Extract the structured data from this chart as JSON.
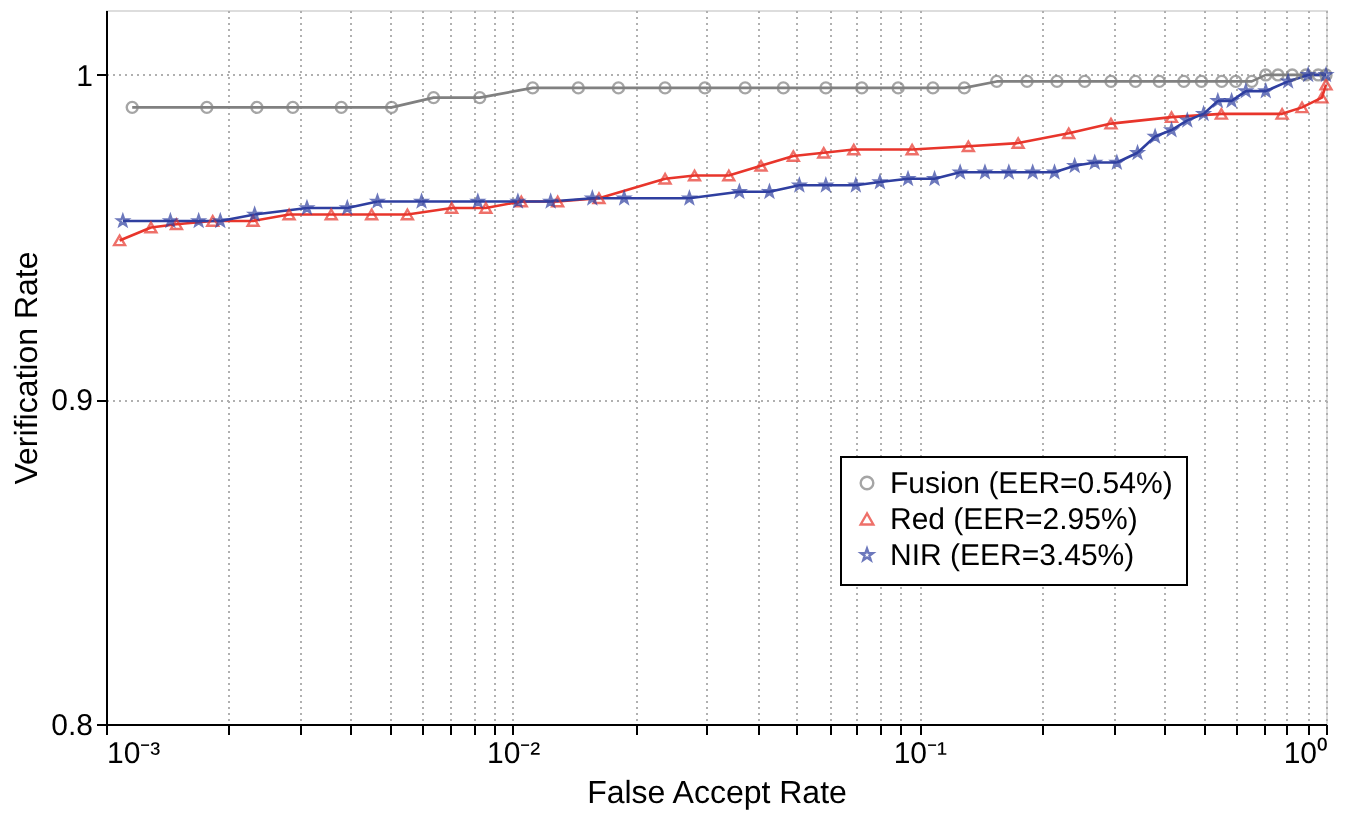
{
  "chart_data": {
    "type": "line",
    "xlabel": "False Accept Rate",
    "ylabel": "Verification Rate",
    "log": "x",
    "grid": true,
    "legend": "bottom right",
    "line_style": "solid",
    "xlim": [
      0.001,
      1
    ],
    "ylim": [
      0.8,
      1.02
    ],
    "xticks": [
      {
        "value": 0.001,
        "label": "10⁻³"
      },
      {
        "value": 0.002,
        "label": null
      },
      {
        "value": 0.003,
        "label": null
      },
      {
        "value": 0.004,
        "label": null
      },
      {
        "value": 0.005,
        "label": null
      },
      {
        "value": 0.006,
        "label": null
      },
      {
        "value": 0.007,
        "label": null
      },
      {
        "value": 0.008,
        "label": null
      },
      {
        "value": 0.009,
        "label": null
      },
      {
        "value": 0.01,
        "label": "10⁻²"
      },
      {
        "value": 0.02,
        "label": null
      },
      {
        "value": 0.03,
        "label": null
      },
      {
        "value": 0.04,
        "label": null
      },
      {
        "value": 0.05,
        "label": null
      },
      {
        "value": 0.06,
        "label": null
      },
      {
        "value": 0.07,
        "label": null
      },
      {
        "value": 0.08,
        "label": null
      },
      {
        "value": 0.09,
        "label": null
      },
      {
        "value": 0.1,
        "label": "10⁻¹"
      },
      {
        "value": 0.2,
        "label": null
      },
      {
        "value": 0.3,
        "label": null
      },
      {
        "value": 0.4,
        "label": null
      },
      {
        "value": 0.5,
        "label": null
      },
      {
        "value": 0.6,
        "label": null
      },
      {
        "value": 0.7,
        "label": null
      },
      {
        "value": 0.8,
        "label": null
      },
      {
        "value": 0.9,
        "label": null
      },
      {
        "value": 1,
        "label": "10⁰"
      }
    ],
    "yticks": [
      0.8,
      0.9,
      1
    ],
    "series": [
      {
        "name": "Fusion (EER=0.54%)",
        "color": "#808080",
        "marker": "circle",
        "x": [
          0.00116,
          0.00177,
          0.00235,
          0.00288,
          0.00379,
          0.00504,
          0.00639,
          0.0083,
          0.0112,
          0.0145,
          0.0182,
          0.0237,
          0.0297,
          0.0373,
          0.0463,
          0.0589,
          0.0722,
          0.0887,
          0.108,
          0.129,
          0.155,
          0.184,
          0.218,
          0.255,
          0.296,
          0.34,
          0.389,
          0.447,
          0.494,
          0.554,
          0.6,
          0.657,
          0.711,
          0.762,
          0.826,
          0.893,
          0.957,
          1.0
        ],
        "values": [
          0.99,
          0.99,
          0.99,
          0.99,
          0.99,
          0.99,
          0.993,
          0.993,
          0.996,
          0.996,
          0.996,
          0.996,
          0.996,
          0.996,
          0.996,
          0.996,
          0.996,
          0.996,
          0.996,
          0.996,
          0.998,
          0.998,
          0.998,
          0.998,
          0.998,
          0.998,
          0.998,
          0.998,
          0.998,
          0.998,
          0.998,
          0.998,
          1.0,
          1.0,
          1.0,
          1.0,
          1.0,
          1.0
        ]
      },
      {
        "name": "Red (EER=2.95%)",
        "color": "#e8352b",
        "marker": "triangle",
        "x": [
          0.00108,
          0.00129,
          0.00149,
          0.00183,
          0.0023,
          0.00282,
          0.00358,
          0.0045,
          0.00551,
          0.00708,
          0.00859,
          0.0105,
          0.0129,
          0.0163,
          0.0237,
          0.028,
          0.034,
          0.0408,
          0.049,
          0.0582,
          0.069,
          0.096,
          0.132,
          0.175,
          0.233,
          0.296,
          0.417,
          0.553,
          0.78,
          0.873,
          0.977,
          1.0
        ],
        "values": [
          0.949,
          0.953,
          0.954,
          0.955,
          0.955,
          0.957,
          0.957,
          0.957,
          0.957,
          0.959,
          0.959,
          0.961,
          0.961,
          0.962,
          0.968,
          0.969,
          0.969,
          0.972,
          0.975,
          0.976,
          0.977,
          0.977,
          0.978,
          0.979,
          0.982,
          0.985,
          0.987,
          0.988,
          0.988,
          0.99,
          0.993,
          0.997
        ]
      },
      {
        "name": "NIR (EER=3.45%)",
        "color": "#2f3fa0",
        "marker": "star",
        "x": [
          0.0011,
          0.00144,
          0.00169,
          0.00191,
          0.00232,
          0.00312,
          0.00392,
          0.00465,
          0.00597,
          0.00821,
          0.0103,
          0.0124,
          0.0157,
          0.0188,
          0.0272,
          0.0361,
          0.0428,
          0.0507,
          0.0589,
          0.0698,
          0.08,
          0.0938,
          0.109,
          0.126,
          0.145,
          0.166,
          0.19,
          0.215,
          0.241,
          0.27,
          0.306,
          0.344,
          0.38,
          0.417,
          0.456,
          0.5,
          0.542,
          0.586,
          0.635,
          0.711,
          0.807,
          0.904,
          1.0
        ],
        "values": [
          0.955,
          0.955,
          0.955,
          0.955,
          0.957,
          0.959,
          0.959,
          0.961,
          0.961,
          0.961,
          0.961,
          0.961,
          0.962,
          0.962,
          0.962,
          0.964,
          0.964,
          0.966,
          0.966,
          0.966,
          0.967,
          0.968,
          0.968,
          0.97,
          0.97,
          0.97,
          0.97,
          0.97,
          0.972,
          0.973,
          0.973,
          0.976,
          0.981,
          0.983,
          0.986,
          0.988,
          0.992,
          0.992,
          0.995,
          0.995,
          0.998,
          1.0,
          1.0
        ]
      }
    ]
  }
}
